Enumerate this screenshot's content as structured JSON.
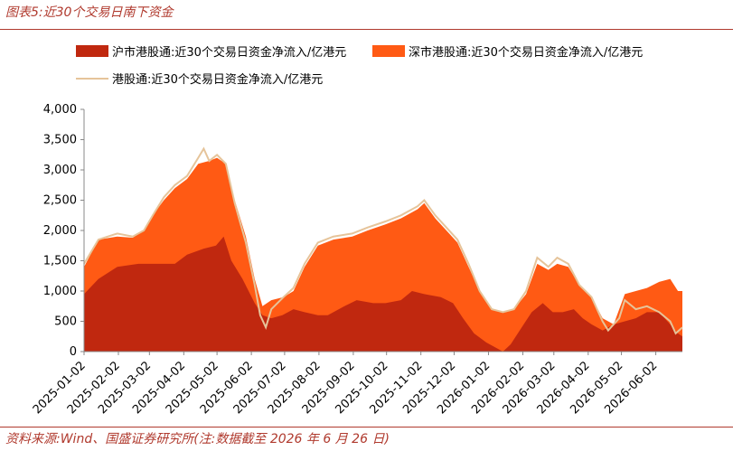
{
  "title": "图表5:近30个交易日南下资金",
  "source": "资料来源:Wind、国盛证券研究所(注:数据截至 2026 年 6 月 26 日)",
  "colors": {
    "accent": "#b03a2e",
    "sh": "#c0280f",
    "sz": "#ff5a14",
    "total": "#e6c49a"
  },
  "chart_data": {
    "type": "area",
    "legend_placement": "top",
    "grid": false,
    "ylim": [
      0,
      4000
    ],
    "yticks": [
      "0",
      "500",
      "1,000",
      "1,500",
      "2,000",
      "2,500",
      "3,000",
      "3,500",
      "4,000"
    ],
    "ytick_values": [
      0,
      500,
      1000,
      1500,
      2000,
      2500,
      3000,
      3500,
      4000
    ],
    "xlabels": [
      "2025-01-02",
      "2025-02-02",
      "2025-03-02",
      "2025-04-02",
      "2025-05-02",
      "2025-06-02",
      "2025-07-02",
      "2025-08-02",
      "2025-09-02",
      "2025-10-02",
      "2025-11-02",
      "2025-12-02",
      "2026-01-02",
      "2026-02-02",
      "2026-03-02",
      "2026-04-02",
      "2026-05-02",
      "2026-06-02"
    ],
    "xrange": [
      "2025-01-02",
      "2026-06-26"
    ],
    "series": [
      {
        "name": "沪市港股通:近30个交易日资金净流入/亿港元",
        "kind": "area",
        "points": [
          [
            "2025-01-02",
            950
          ],
          [
            "2025-01-15",
            1200
          ],
          [
            "2025-02-01",
            1400
          ],
          [
            "2025-02-20",
            1450
          ],
          [
            "2025-03-10",
            1450
          ],
          [
            "2025-03-25",
            1450
          ],
          [
            "2025-04-05",
            1600
          ],
          [
            "2025-04-20",
            1700
          ],
          [
            "2025-05-01",
            1750
          ],
          [
            "2025-05-08",
            1900
          ],
          [
            "2025-05-15",
            1500
          ],
          [
            "2025-05-25",
            1200
          ],
          [
            "2025-06-05",
            800
          ],
          [
            "2025-06-12",
            600
          ],
          [
            "2025-06-20",
            550
          ],
          [
            "2025-06-30",
            600
          ],
          [
            "2025-07-10",
            700
          ],
          [
            "2025-07-20",
            650
          ],
          [
            "2025-08-01",
            600
          ],
          [
            "2025-08-10",
            600
          ],
          [
            "2025-08-25",
            750
          ],
          [
            "2025-09-05",
            850
          ],
          [
            "2025-09-20",
            800
          ],
          [
            "2025-10-01",
            800
          ],
          [
            "2025-10-15",
            850
          ],
          [
            "2025-10-25",
            1000
          ],
          [
            "2025-11-05",
            950
          ],
          [
            "2025-11-20",
            900
          ],
          [
            "2025-12-01",
            800
          ],
          [
            "2025-12-10",
            550
          ],
          [
            "2025-12-20",
            300
          ],
          [
            "2025-12-31",
            150
          ],
          [
            "2026-01-10",
            50
          ],
          [
            "2026-01-15",
            0
          ],
          [
            "2026-01-22",
            120
          ],
          [
            "2026-02-01",
            400
          ],
          [
            "2026-02-10",
            650
          ],
          [
            "2026-02-20",
            800
          ],
          [
            "2026-03-01",
            650
          ],
          [
            "2026-03-10",
            650
          ],
          [
            "2026-03-20",
            700
          ],
          [
            "2026-03-28",
            550
          ],
          [
            "2026-04-05",
            450
          ],
          [
            "2026-04-15",
            350
          ],
          [
            "2026-04-25",
            450
          ],
          [
            "2026-05-05",
            500
          ],
          [
            "2026-05-15",
            550
          ],
          [
            "2026-05-25",
            650
          ],
          [
            "2026-06-05",
            650
          ],
          [
            "2026-06-15",
            450
          ],
          [
            "2026-06-22",
            300
          ],
          [
            "2026-06-26",
            250
          ]
        ]
      },
      {
        "name": "深市港股通:近30个交易日资金净流入/亿港元",
        "kind": "area",
        "points": [
          [
            "2025-01-02",
            1400
          ],
          [
            "2025-01-15",
            1850
          ],
          [
            "2025-02-01",
            1900
          ],
          [
            "2025-02-15",
            1880
          ],
          [
            "2025-02-25",
            2000
          ],
          [
            "2025-03-05",
            2250
          ],
          [
            "2025-03-15",
            2500
          ],
          [
            "2025-03-25",
            2700
          ],
          [
            "2025-04-05",
            2850
          ],
          [
            "2025-04-15",
            3100
          ],
          [
            "2025-04-25",
            3150
          ],
          [
            "2025-05-02",
            3200
          ],
          [
            "2025-05-10",
            3100
          ],
          [
            "2025-05-18",
            2500
          ],
          [
            "2025-05-28",
            1900
          ],
          [
            "2025-06-05",
            1200
          ],
          [
            "2025-06-12",
            750
          ],
          [
            "2025-06-20",
            850
          ],
          [
            "2025-07-01",
            900
          ],
          [
            "2025-07-10",
            1000
          ],
          [
            "2025-07-20",
            1400
          ],
          [
            "2025-08-01",
            1750
          ],
          [
            "2025-08-15",
            1850
          ],
          [
            "2025-09-01",
            1900
          ],
          [
            "2025-09-15",
            2000
          ],
          [
            "2025-10-01",
            2100
          ],
          [
            "2025-10-15",
            2200
          ],
          [
            "2025-10-30",
            2350
          ],
          [
            "2025-11-05",
            2450
          ],
          [
            "2025-11-15",
            2200
          ],
          [
            "2025-11-25",
            2000
          ],
          [
            "2025-12-05",
            1800
          ],
          [
            "2025-12-15",
            1400
          ],
          [
            "2025-12-25",
            1000
          ],
          [
            "2026-01-05",
            700
          ],
          [
            "2026-01-15",
            650
          ],
          [
            "2026-01-25",
            700
          ],
          [
            "2026-02-05",
            950
          ],
          [
            "2026-02-15",
            1450
          ],
          [
            "2026-02-25",
            1350
          ],
          [
            "2026-03-05",
            1450
          ],
          [
            "2026-03-15",
            1400
          ],
          [
            "2026-03-25",
            1100
          ],
          [
            "2026-04-05",
            900
          ],
          [
            "2026-04-15",
            550
          ],
          [
            "2026-04-25",
            450
          ],
          [
            "2026-05-05",
            950
          ],
          [
            "2026-05-15",
            1000
          ],
          [
            "2026-05-25",
            1050
          ],
          [
            "2026-06-05",
            1150
          ],
          [
            "2026-06-15",
            1200
          ],
          [
            "2026-06-22",
            1000
          ],
          [
            "2026-06-26",
            1000
          ]
        ]
      },
      {
        "name": "港股通:近30个交易日资金净流入/亿港元",
        "kind": "line",
        "points": [
          [
            "2025-01-02",
            1450
          ],
          [
            "2025-01-15",
            1850
          ],
          [
            "2025-02-01",
            1950
          ],
          [
            "2025-02-15",
            1900
          ],
          [
            "2025-02-25",
            2000
          ],
          [
            "2025-03-05",
            2250
          ],
          [
            "2025-03-15",
            2550
          ],
          [
            "2025-03-25",
            2750
          ],
          [
            "2025-04-05",
            2900
          ],
          [
            "2025-04-15",
            3200
          ],
          [
            "2025-04-20",
            3350
          ],
          [
            "2025-04-25",
            3150
          ],
          [
            "2025-05-02",
            3250
          ],
          [
            "2025-05-10",
            3100
          ],
          [
            "2025-05-18",
            2450
          ],
          [
            "2025-05-28",
            1800
          ],
          [
            "2025-06-05",
            1100
          ],
          [
            "2025-06-10",
            600
          ],
          [
            "2025-06-15",
            400
          ],
          [
            "2025-06-20",
            700
          ],
          [
            "2025-07-01",
            900
          ],
          [
            "2025-07-10",
            1050
          ],
          [
            "2025-07-20",
            1450
          ],
          [
            "2025-08-01",
            1800
          ],
          [
            "2025-08-15",
            1900
          ],
          [
            "2025-09-01",
            1950
          ],
          [
            "2025-09-15",
            2050
          ],
          [
            "2025-10-01",
            2150
          ],
          [
            "2025-10-15",
            2250
          ],
          [
            "2025-10-30",
            2400
          ],
          [
            "2025-11-05",
            2500
          ],
          [
            "2025-11-15",
            2250
          ],
          [
            "2025-11-25",
            2050
          ],
          [
            "2025-12-05",
            1850
          ],
          [
            "2025-12-15",
            1450
          ],
          [
            "2025-12-25",
            1000
          ],
          [
            "2026-01-05",
            700
          ],
          [
            "2026-01-15",
            650
          ],
          [
            "2026-01-25",
            700
          ],
          [
            "2026-02-05",
            1000
          ],
          [
            "2026-02-15",
            1550
          ],
          [
            "2026-02-25",
            1400
          ],
          [
            "2026-03-05",
            1550
          ],
          [
            "2026-03-15",
            1450
          ],
          [
            "2026-03-25",
            1100
          ],
          [
            "2026-04-05",
            900
          ],
          [
            "2026-04-15",
            500
          ],
          [
            "2026-04-20",
            350
          ],
          [
            "2026-04-30",
            550
          ],
          [
            "2026-05-05",
            850
          ],
          [
            "2026-05-15",
            700
          ],
          [
            "2026-05-25",
            750
          ],
          [
            "2026-06-05",
            650
          ],
          [
            "2026-06-15",
            500
          ],
          [
            "2026-06-20",
            300
          ],
          [
            "2026-06-26",
            400
          ]
        ]
      }
    ]
  }
}
